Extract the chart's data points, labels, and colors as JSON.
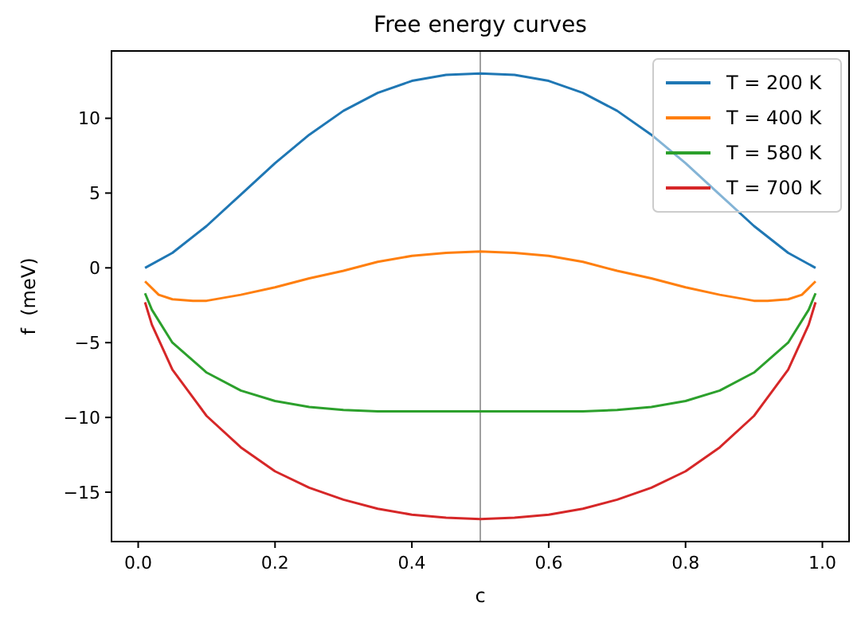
{
  "chart_data": {
    "type": "line",
    "title": "Free energy curves",
    "xlabel": "c",
    "ylabel": "f  (meV)",
    "xlim": [
      -0.039,
      1.039
    ],
    "ylim": [
      -18.3,
      14.5
    ],
    "xticks": [
      {
        "value": 0,
        "label": "0.0"
      },
      0.2,
      0.4,
      0.6,
      0.8,
      {
        "value": 1,
        "label": "1.0"
      }
    ],
    "yticks": [
      -15,
      -10,
      -5,
      0,
      5,
      10
    ],
    "legend": "top right",
    "grid": false,
    "marker": "none",
    "line_style": "solid",
    "ref_lines": [
      {
        "axis": "x",
        "value": 0.5,
        "color": "#a0a0a0"
      }
    ],
    "series": [
      {
        "name": "T = 200 K",
        "color": "#1f77b4",
        "x": [
          0.01,
          0.05,
          0.1,
          0.15,
          0.2,
          0.25,
          0.3,
          0.35,
          0.4,
          0.45,
          0.5,
          0.55,
          0.6,
          0.65,
          0.7,
          0.75,
          0.8,
          0.85,
          0.9,
          0.95,
          0.99
        ],
        "values": [
          0,
          1.0,
          2.8,
          4.9,
          7.0,
          8.9,
          10.5,
          11.7,
          12.5,
          12.9,
          13.0,
          12.9,
          12.5,
          11.7,
          10.5,
          8.9,
          7.0,
          4.9,
          2.8,
          1.0,
          0
        ]
      },
      {
        "name": "T = 400 K",
        "color": "#ff7f0e",
        "x": [
          0.01,
          0.03,
          0.05,
          0.08,
          0.1,
          0.15,
          0.2,
          0.25,
          0.3,
          0.35,
          0.4,
          0.45,
          0.5,
          0.55,
          0.6,
          0.65,
          0.7,
          0.75,
          0.8,
          0.85,
          0.9,
          0.92,
          0.95,
          0.97,
          0.99
        ],
        "values": [
          -0.9,
          -1.8,
          -2.1,
          -2.2,
          -2.2,
          -1.8,
          -1.3,
          -0.7,
          -0.2,
          0.4,
          0.8,
          1.0,
          1.1,
          1.0,
          0.8,
          0.4,
          -0.2,
          -0.7,
          -1.3,
          -1.8,
          -2.2,
          -2.2,
          -2.1,
          -1.8,
          -0.9
        ]
      },
      {
        "name": "T = 580 K",
        "color": "#2ca02c",
        "x": [
          0.01,
          0.02,
          0.05,
          0.1,
          0.15,
          0.2,
          0.25,
          0.3,
          0.35,
          0.4,
          0.5,
          0.6,
          0.65,
          0.7,
          0.75,
          0.8,
          0.85,
          0.9,
          0.95,
          0.98,
          0.99
        ],
        "values": [
          -1.7,
          -2.8,
          -5.0,
          -7.0,
          -8.2,
          -8.9,
          -9.3,
          -9.5,
          -9.6,
          -9.6,
          -9.6,
          -9.6,
          -9.6,
          -9.5,
          -9.3,
          -8.9,
          -8.2,
          -7.0,
          -5.0,
          -2.8,
          -1.7
        ]
      },
      {
        "name": "T = 700 K",
        "color": "#d62728",
        "x": [
          0.01,
          0.02,
          0.05,
          0.1,
          0.15,
          0.2,
          0.25,
          0.3,
          0.35,
          0.4,
          0.45,
          0.5,
          0.55,
          0.6,
          0.65,
          0.7,
          0.75,
          0.8,
          0.85,
          0.9,
          0.95,
          0.98,
          0.99
        ],
        "values": [
          -2.3,
          -3.8,
          -6.8,
          -9.9,
          -12.0,
          -13.6,
          -14.7,
          -15.5,
          -16.1,
          -16.5,
          -16.7,
          -16.8,
          -16.7,
          -16.5,
          -16.1,
          -15.5,
          -14.7,
          -13.6,
          -12.0,
          -9.9,
          -6.8,
          -3.8,
          -2.3
        ]
      }
    ]
  }
}
